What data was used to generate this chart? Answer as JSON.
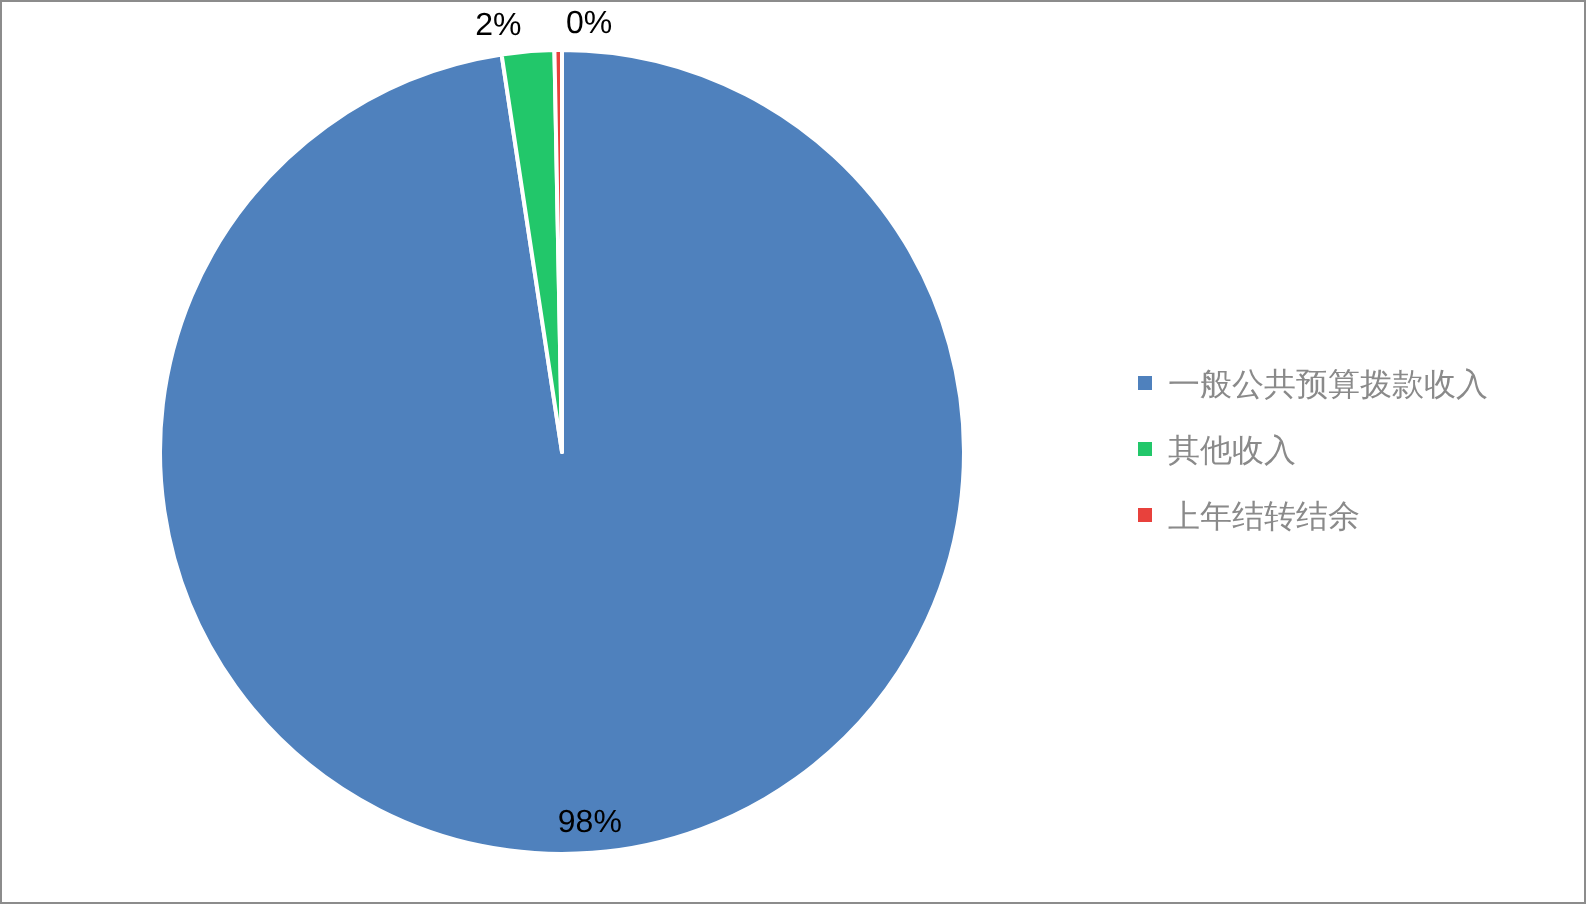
{
  "chart_data": {
    "type": "pie",
    "categories": [
      "一般公共预算拨款收入",
      "其他收入",
      "上年结转结余"
    ],
    "values": [
      97.6,
      2.1,
      0.3
    ],
    "colors": [
      "#4f81bd",
      "#22c76a",
      "#e8413c"
    ],
    "value_labels": [
      "98%",
      "2%",
      "0%"
    ],
    "legend": "right"
  }
}
